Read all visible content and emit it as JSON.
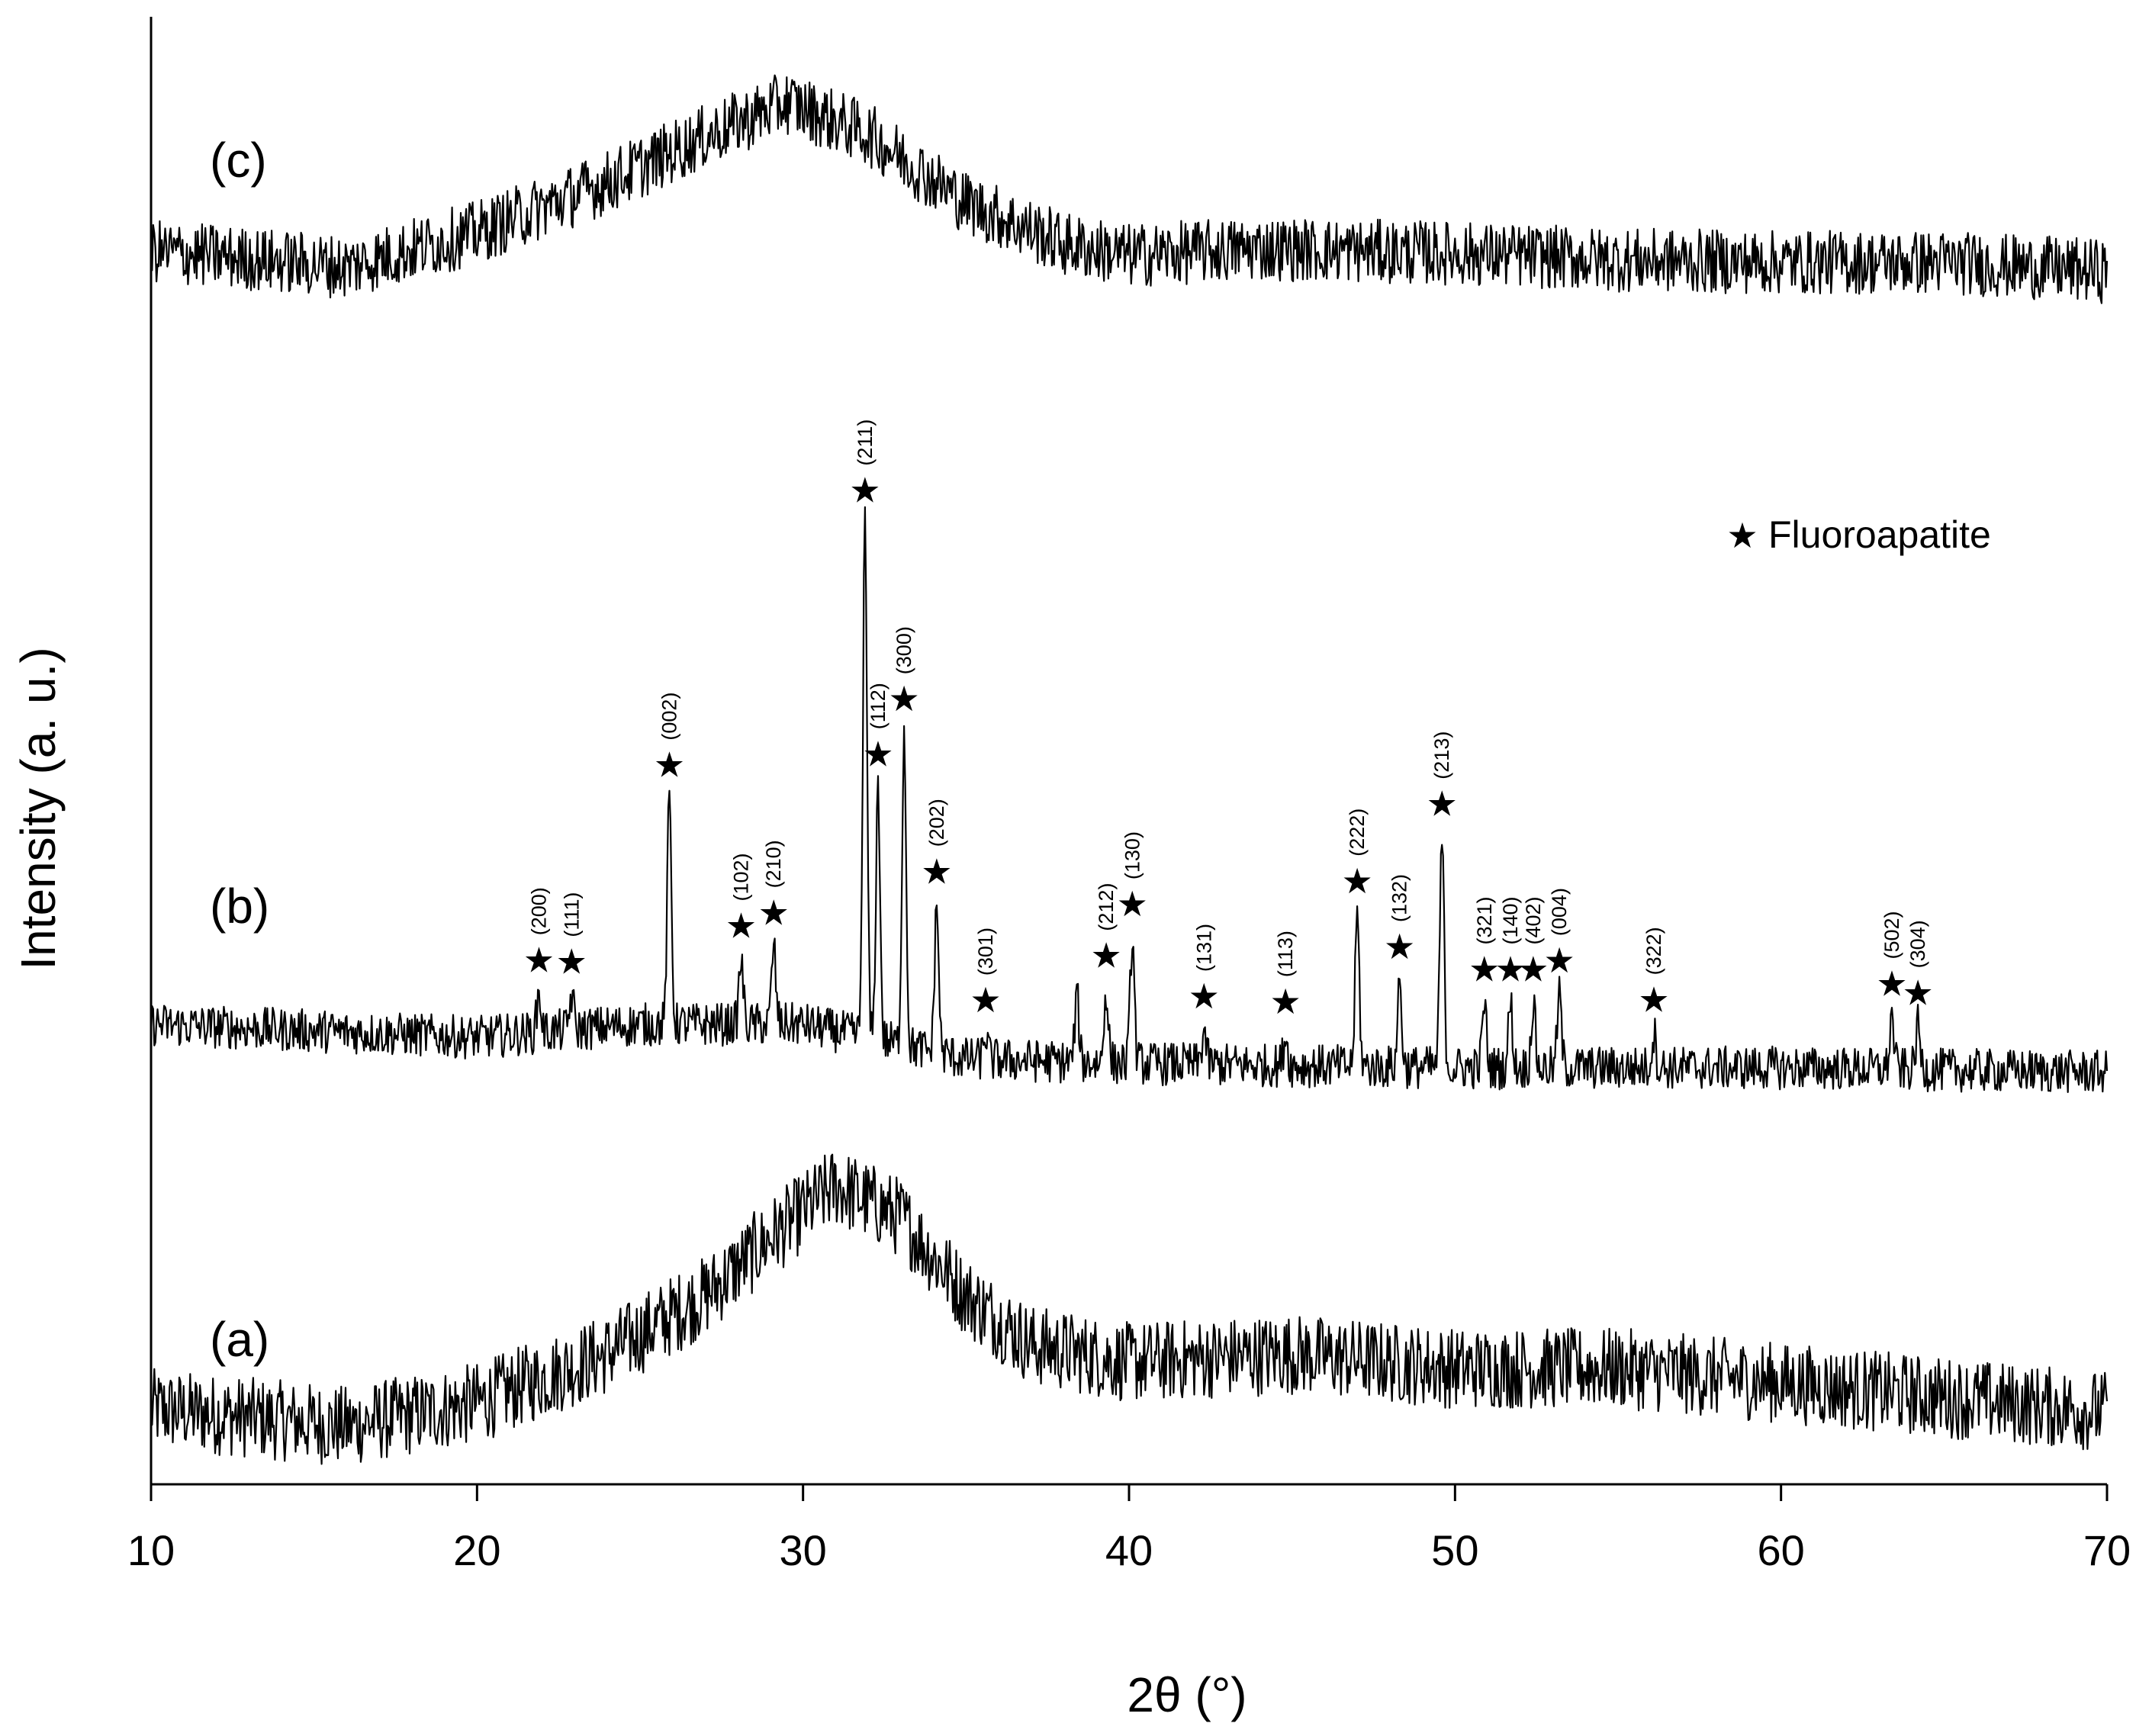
{
  "chart_data": {
    "type": "line",
    "xlabel": "2θ (°)",
    "ylabel": "Intensity (a. u.)",
    "xlim": [
      10,
      70
    ],
    "x_ticks": [
      "10",
      "20",
      "30",
      "40",
      "50",
      "60",
      "70"
    ],
    "grid": false,
    "y_tick_labels_shown": false,
    "legend": {
      "marker_icon": "star-icon",
      "label": "Fluoroapatite",
      "placement": "top-right"
    },
    "series": [
      {
        "name": "(a)",
        "profile": [
          [
            10,
            0.06
          ],
          [
            16,
            0.0
          ],
          [
            20,
            0.08
          ],
          [
            24,
            0.25
          ],
          [
            27,
            0.45
          ],
          [
            29,
            0.65
          ],
          [
            31,
            0.83
          ],
          [
            33,
            0.72
          ],
          [
            35,
            0.45
          ],
          [
            37,
            0.28
          ],
          [
            40,
            0.22
          ],
          [
            45,
            0.25
          ],
          [
            50,
            0.2
          ],
          [
            55,
            0.2
          ],
          [
            60,
            0.15
          ],
          [
            65,
            0.1
          ],
          [
            70,
            0.05
          ]
        ],
        "noise": 0.14
      },
      {
        "name": "(b)",
        "profile": [
          [
            10,
            0.1
          ],
          [
            20,
            0.07
          ],
          [
            25,
            0.1
          ],
          [
            30,
            0.1
          ],
          [
            32,
            0.07
          ],
          [
            35,
            0.02
          ],
          [
            40,
            0.01
          ],
          [
            50,
            0.0
          ],
          [
            60,
            0.0
          ],
          [
            70,
            -0.01
          ]
        ],
        "noise": 0.05,
        "reflections": [
          {
            "hkl": "(200)",
            "two_theta": 21.9,
            "height": 0.09
          },
          {
            "hkl": "(111)",
            "two_theta": 22.9,
            "height": 0.08
          },
          {
            "hkl": "(002)",
            "two_theta": 25.9,
            "height": 0.52
          },
          {
            "hkl": "(102)",
            "two_theta": 28.1,
            "height": 0.15
          },
          {
            "hkl": "(210)",
            "two_theta": 29.1,
            "height": 0.18
          },
          {
            "hkl": "(211)",
            "two_theta": 31.9,
            "height": 1.18
          },
          {
            "hkl": "(112)",
            "two_theta": 32.3,
            "height": 0.58
          },
          {
            "hkl": "(300)",
            "two_theta": 33.1,
            "height": 0.72
          },
          {
            "hkl": "(202)",
            "two_theta": 34.1,
            "height": 0.34
          },
          {
            "hkl": "(301)",
            "two_theta": 35.6,
            "height": 0.06
          },
          {
            "hkl": "(212)",
            "two_theta": 39.3,
            "height": 0.17
          },
          {
            "hkl": "(130)",
            "two_theta": 40.1,
            "height": 0.29
          },
          {
            "hkl": "(131)",
            "two_theta": 42.3,
            "height": 0.08
          },
          {
            "hkl": "(113)",
            "two_theta": 44.8,
            "height": 0.07
          },
          {
            "hkl": "(222)",
            "two_theta": 47.0,
            "height": 0.35
          },
          {
            "hkl": "(132)",
            "two_theta": 48.3,
            "height": 0.2
          },
          {
            "hkl": "(213)",
            "two_theta": 49.6,
            "height": 0.53
          },
          {
            "hkl": "(321)",
            "two_theta": 50.9,
            "height": 0.15
          },
          {
            "hkl": "(140)",
            "two_theta": 51.7,
            "height": 0.15
          },
          {
            "hkl": "(402)",
            "two_theta": 52.4,
            "height": 0.15
          },
          {
            "hkl": "(004)",
            "two_theta": 53.2,
            "height": 0.17
          },
          {
            "hkl": "(322)",
            "two_theta": 56.1,
            "height": 0.08
          },
          {
            "hkl": "(502)",
            "two_theta": 63.4,
            "height": 0.12
          },
          {
            "hkl": "(304)",
            "two_theta": 64.2,
            "height": 0.1
          }
        ],
        "extra_peaks": [
          {
            "two_theta": 38.4,
            "height": 0.15
          }
        ]
      },
      {
        "name": "(c)",
        "profile": [
          [
            10,
            0.07
          ],
          [
            16,
            0.0
          ],
          [
            20,
            0.15
          ],
          [
            24,
            0.37
          ],
          [
            27,
            0.57
          ],
          [
            29.5,
            0.72
          ],
          [
            32,
            0.58
          ],
          [
            35,
            0.28
          ],
          [
            38,
            0.1
          ],
          [
            40,
            0.05
          ],
          [
            44,
            0.08
          ],
          [
            50,
            0.06
          ],
          [
            55,
            0.03
          ],
          [
            60,
            0.02
          ],
          [
            65,
            0.02
          ],
          [
            70,
            -0.02
          ]
        ],
        "noise": 0.14
      }
    ]
  }
}
